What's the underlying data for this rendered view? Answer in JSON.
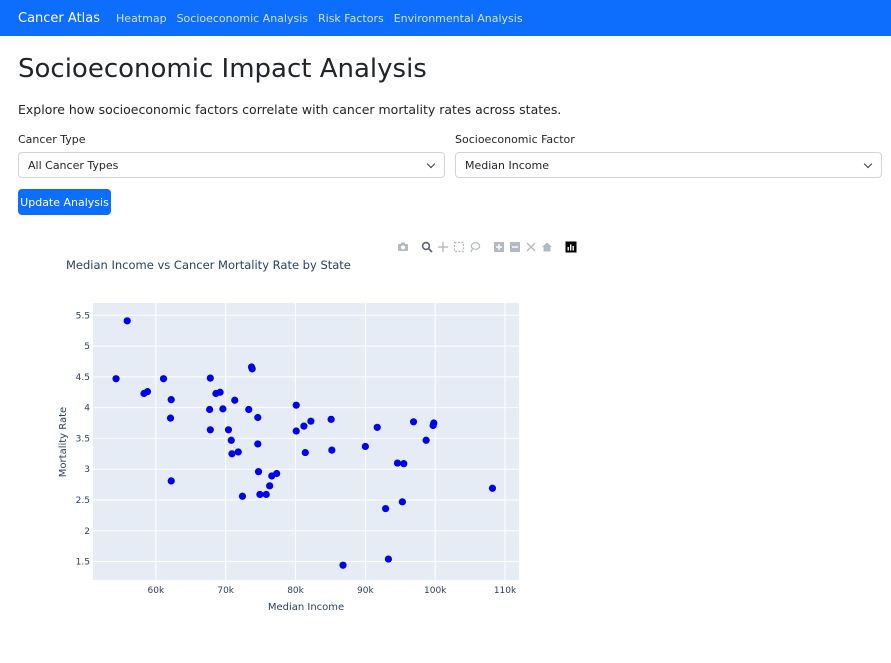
{
  "navbar": {
    "brand": "Cancer Atlas",
    "links": [
      "Heatmap",
      "Socioeconomic Analysis",
      "Risk Factors",
      "Environmental Analysis"
    ]
  },
  "page": {
    "title": "Socioeconomic Impact Analysis",
    "description": "Explore how socioeconomic factors correlate with cancer mortality rates across states."
  },
  "controls": {
    "cancer_type_label": "Cancer Type",
    "cancer_type_value": "All Cancer Types",
    "factor_label": "Socioeconomic Factor",
    "factor_value": "Median Income",
    "update_button": "Update Analysis"
  },
  "modebar_icons": [
    "camera-icon",
    "zoom-icon",
    "pan-icon",
    "box-select-icon",
    "lasso-icon",
    "zoom-in-icon",
    "zoom-out-icon",
    "autoscale-icon",
    "reset-axes-icon",
    "plotly-logo-icon"
  ],
  "colors": {
    "navbar": "#0d6efd",
    "marker": "#0000ee",
    "plot_bg": "#e5ecf6"
  },
  "chart_data": {
    "type": "scatter",
    "title": "Median Income vs Cancer Mortality Rate by State",
    "xlabel": "Median Income",
    "ylabel": "Mortality Rate",
    "xlim": [
      51000,
      112000
    ],
    "ylim": [
      1.2,
      5.7
    ],
    "xticks": [
      60000,
      70000,
      80000,
      90000,
      100000,
      110000
    ],
    "xtick_labels": [
      "60k",
      "70k",
      "80k",
      "90k",
      "100k",
      "110k"
    ],
    "yticks": [
      1.5,
      2,
      2.5,
      3,
      3.5,
      4,
      4.5,
      5,
      5.5
    ],
    "ytick_labels": [
      "1.5",
      "2",
      "2.5",
      "3",
      "3.5",
      "4",
      "4.5",
      "5",
      "5.5"
    ],
    "grid": true,
    "points": [
      {
        "x": 55900,
        "y": 5.41
      },
      {
        "x": 54300,
        "y": 4.47
      },
      {
        "x": 58300,
        "y": 4.23
      },
      {
        "x": 58800,
        "y": 4.26
      },
      {
        "x": 61100,
        "y": 4.47
      },
      {
        "x": 62200,
        "y": 4.13
      },
      {
        "x": 62100,
        "y": 3.83
      },
      {
        "x": 62200,
        "y": 2.81
      },
      {
        "x": 67800,
        "y": 4.48
      },
      {
        "x": 67700,
        "y": 3.97
      },
      {
        "x": 67800,
        "y": 3.64
      },
      {
        "x": 68600,
        "y": 4.23
      },
      {
        "x": 69200,
        "y": 4.25
      },
      {
        "x": 69600,
        "y": 3.98
      },
      {
        "x": 70400,
        "y": 3.64
      },
      {
        "x": 70800,
        "y": 3.47
      },
      {
        "x": 70900,
        "y": 3.25
      },
      {
        "x": 71300,
        "y": 4.12
      },
      {
        "x": 71800,
        "y": 3.28
      },
      {
        "x": 72400,
        "y": 2.56
      },
      {
        "x": 73300,
        "y": 3.97
      },
      {
        "x": 73700,
        "y": 4.66
      },
      {
        "x": 73800,
        "y": 4.63
      },
      {
        "x": 74600,
        "y": 3.84
      },
      {
        "x": 74600,
        "y": 3.41
      },
      {
        "x": 74700,
        "y": 2.96
      },
      {
        "x": 74900,
        "y": 2.59
      },
      {
        "x": 75800,
        "y": 2.59
      },
      {
        "x": 76300,
        "y": 2.73
      },
      {
        "x": 76600,
        "y": 2.89
      },
      {
        "x": 77300,
        "y": 2.93
      },
      {
        "x": 80100,
        "y": 4.04
      },
      {
        "x": 80100,
        "y": 3.62
      },
      {
        "x": 81200,
        "y": 3.7
      },
      {
        "x": 81400,
        "y": 3.27
      },
      {
        "x": 82200,
        "y": 3.78
      },
      {
        "x": 85100,
        "y": 3.81
      },
      {
        "x": 85200,
        "y": 3.31
      },
      {
        "x": 86800,
        "y": 1.44
      },
      {
        "x": 90000,
        "y": 3.37
      },
      {
        "x": 91700,
        "y": 3.68
      },
      {
        "x": 92900,
        "y": 2.36
      },
      {
        "x": 93300,
        "y": 1.54
      },
      {
        "x": 94600,
        "y": 3.1
      },
      {
        "x": 95300,
        "y": 2.47
      },
      {
        "x": 95500,
        "y": 3.09
      },
      {
        "x": 96900,
        "y": 3.77
      },
      {
        "x": 98700,
        "y": 3.47
      },
      {
        "x": 99700,
        "y": 3.71
      },
      {
        "x": 99800,
        "y": 3.75
      },
      {
        "x": 108200,
        "y": 2.69
      }
    ]
  }
}
